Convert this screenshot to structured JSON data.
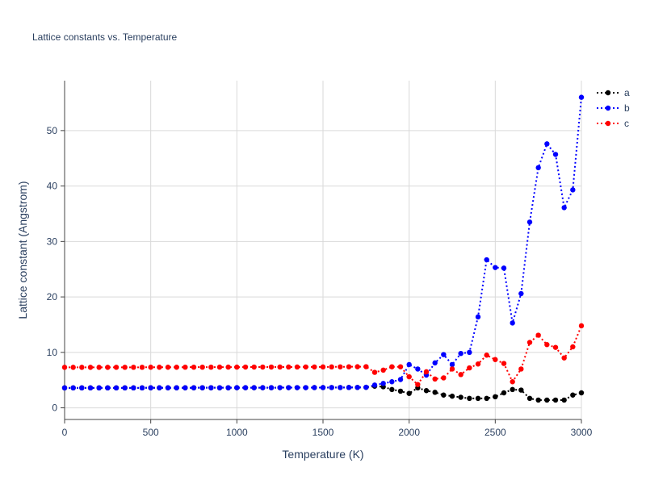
{
  "chart_data": {
    "type": "line",
    "title": "Lattice constants vs. Temperature",
    "xlabel": "Temperature (K)",
    "ylabel": "Lattice constant (Angstrom)",
    "xlim": [
      0,
      3000
    ],
    "ylim": [
      -2.1,
      59.0
    ],
    "xticks": [
      0,
      500,
      1000,
      1500,
      2000,
      2500,
      3000
    ],
    "yticks": [
      0,
      10,
      20,
      30,
      40,
      50
    ],
    "grid": true,
    "legend_position": "top-right",
    "line_style": "dotted-with-markers",
    "x": [
      0,
      50,
      100,
      150,
      200,
      250,
      300,
      350,
      400,
      450,
      500,
      550,
      600,
      650,
      700,
      750,
      800,
      850,
      900,
      950,
      1000,
      1050,
      1100,
      1150,
      1200,
      1250,
      1300,
      1350,
      1400,
      1450,
      1500,
      1550,
      1600,
      1650,
      1700,
      1750,
      1800,
      1850,
      1900,
      1950,
      2000,
      2050,
      2100,
      2150,
      2200,
      2250,
      2300,
      2350,
      2400,
      2450,
      2500,
      2550,
      2600,
      2650,
      2700,
      2750,
      2800,
      2850,
      2900,
      2950,
      3000
    ],
    "series": [
      {
        "name": "a",
        "color": "#000000",
        "values": [
          3.6,
          3.6,
          3.6,
          3.6,
          3.6,
          3.6,
          3.6,
          3.6,
          3.6,
          3.6,
          3.61,
          3.61,
          3.61,
          3.61,
          3.61,
          3.62,
          3.62,
          3.62,
          3.62,
          3.62,
          3.63,
          3.63,
          3.63,
          3.63,
          3.63,
          3.64,
          3.64,
          3.64,
          3.64,
          3.65,
          3.65,
          3.66,
          3.66,
          3.67,
          3.68,
          3.7,
          3.9,
          3.8,
          3.3,
          3.0,
          2.6,
          3.6,
          3.1,
          2.8,
          2.3,
          2.1,
          1.9,
          1.7,
          1.7,
          1.7,
          2.0,
          2.7,
          3.3,
          3.2,
          1.7,
          1.4,
          1.4,
          1.4,
          1.4,
          2.3,
          2.7
        ]
      },
      {
        "name": "b",
        "color": "#0000ff",
        "values": [
          3.6,
          3.6,
          3.6,
          3.6,
          3.6,
          3.6,
          3.6,
          3.6,
          3.6,
          3.6,
          3.61,
          3.61,
          3.61,
          3.61,
          3.61,
          3.62,
          3.62,
          3.62,
          3.62,
          3.62,
          3.63,
          3.63,
          3.63,
          3.63,
          3.63,
          3.64,
          3.64,
          3.64,
          3.64,
          3.65,
          3.65,
          3.66,
          3.66,
          3.67,
          3.68,
          3.7,
          4.1,
          4.4,
          4.7,
          5.1,
          7.8,
          7.0,
          5.9,
          8.1,
          9.6,
          7.8,
          9.8,
          10.0,
          16.4,
          26.7,
          25.3,
          25.2,
          15.3,
          20.6,
          33.5,
          43.3,
          47.6,
          45.7,
          36.1,
          39.3,
          56.0
        ]
      },
      {
        "name": "c",
        "color": "#ff0000",
        "values": [
          7.3,
          7.3,
          7.3,
          7.3,
          7.3,
          7.3,
          7.31,
          7.31,
          7.31,
          7.31,
          7.32,
          7.32,
          7.32,
          7.32,
          7.33,
          7.33,
          7.33,
          7.33,
          7.34,
          7.34,
          7.34,
          7.35,
          7.35,
          7.35,
          7.35,
          7.36,
          7.36,
          7.36,
          7.37,
          7.37,
          7.38,
          7.38,
          7.39,
          7.4,
          7.41,
          7.42,
          6.4,
          6.8,
          7.4,
          7.4,
          5.6,
          4.2,
          6.5,
          5.2,
          5.4,
          7.0,
          6.0,
          7.2,
          7.9,
          9.5,
          8.7,
          8.0,
          4.7,
          7.0,
          11.8,
          13.1,
          11.4,
          10.9,
          9.0,
          11.0,
          14.8
        ]
      }
    ]
  }
}
